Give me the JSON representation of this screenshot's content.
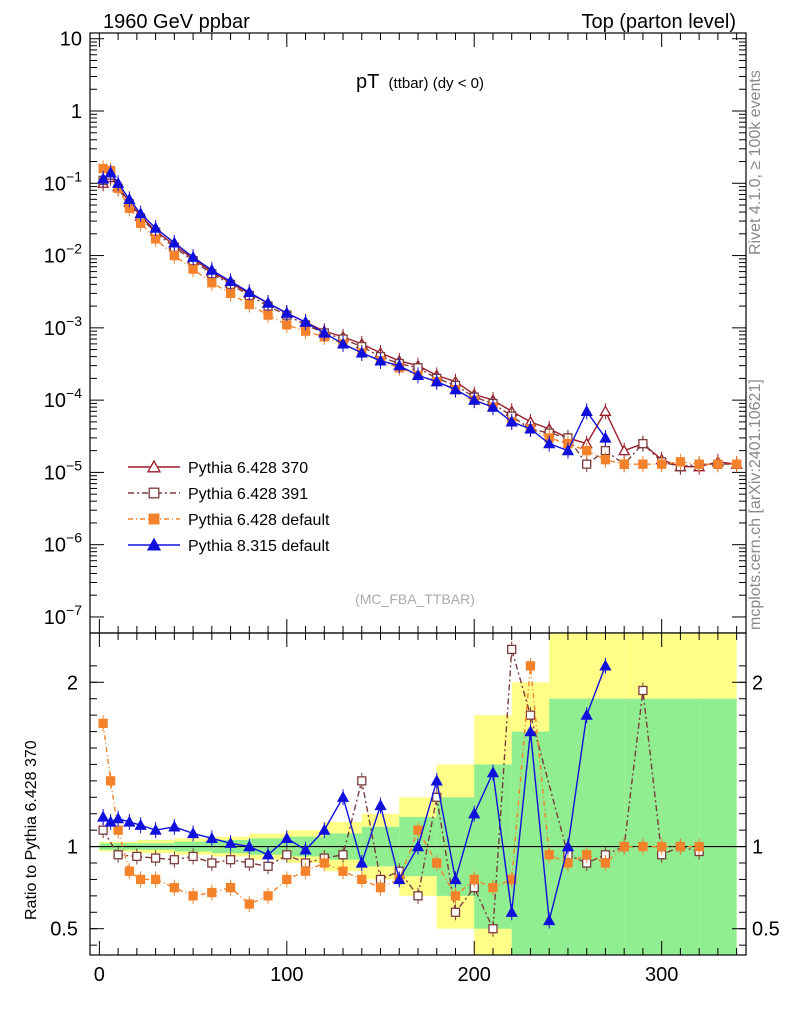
{
  "header": {
    "left": "1960 GeV ppbar",
    "right": "Top (parton level)"
  },
  "title": {
    "main": "pT",
    "sub": "(ttbar)  (dy < 0)"
  },
  "side_labels": {
    "rivet": "Rivet 4.1.0, ≥ 100k events",
    "mcplots": "mcplots.cern.ch [arXiv:2401.10621]"
  },
  "analysis_tag": "(MC_FBA_TTBAR)",
  "ratio_ylabel": "Ratio to Pythia 6.428 370",
  "colors": {
    "p6_370": "#9b1b2a",
    "p6_391": "#7b3b3b",
    "p6_default": "#f4822a",
    "p8_default": "#1010dd",
    "band_green": "#90ee90",
    "band_yellow": "#ffff88"
  },
  "chart_data": [
    {
      "type": "line",
      "panel": "main",
      "yscale": "log",
      "xlim": [
        -5,
        345
      ],
      "ylim": [
        6e-08,
        12
      ],
      "x_ticks": [
        0,
        100,
        200,
        300
      ],
      "y_ticks": [
        {
          "value": 1e-07,
          "label_base": "10",
          "label_exp": "−7"
        },
        {
          "value": 1e-06,
          "label_base": "10",
          "label_exp": "−6"
        },
        {
          "value": 1e-05,
          "label_base": "10",
          "label_exp": "−5"
        },
        {
          "value": 0.0001,
          "label_base": "10",
          "label_exp": "−4"
        },
        {
          "value": 0.001,
          "label_base": "10",
          "label_exp": "−3"
        },
        {
          "value": 0.01,
          "label_base": "10",
          "label_exp": "−2"
        },
        {
          "value": 0.1,
          "label_base": "10",
          "label_exp": "−1"
        },
        {
          "value": 1,
          "label_base": "1",
          "label_exp": ""
        },
        {
          "value": 10,
          "label_base": "10",
          "label_exp": ""
        }
      ],
      "series": [
        {
          "name": "Pythia 6.428 370",
          "key": "p6_370",
          "marker": "triangle-open",
          "dash": "",
          "x": [
            2,
            6,
            10,
            16,
            22,
            30,
            40,
            50,
            60,
            70,
            80,
            90,
            100,
            110,
            120,
            130,
            140,
            150,
            160,
            170,
            180,
            190,
            200,
            210,
            220,
            230,
            240,
            250,
            260,
            270,
            280,
            290,
            300,
            310,
            320,
            330,
            340
          ],
          "y": [
            0.1,
            0.12,
            0.09,
            0.055,
            0.035,
            0.022,
            0.014,
            0.009,
            0.006,
            0.0042,
            0.003,
            0.0022,
            0.0016,
            0.0012,
            0.0009,
            0.00075,
            0.0006,
            0.00045,
            0.00035,
            0.0003,
            0.00022,
            0.00018,
            0.00012,
            0.0001,
            7e-05,
            5e-05,
            4e-05,
            3e-05,
            2.5e-05,
            7e-05,
            2e-05,
            2.5e-05,
            1.5e-05,
            1.2e-05,
            1.2e-05,
            1.4e-05,
            1.3e-05
          ]
        },
        {
          "name": "Pythia 6.428 391",
          "key": "p6_391",
          "marker": "square-open",
          "dash": "6,3,2,3",
          "x": [
            2,
            6,
            10,
            16,
            22,
            30,
            40,
            50,
            60,
            70,
            80,
            90,
            100,
            110,
            120,
            130,
            140,
            150,
            160,
            170,
            180,
            190,
            200,
            210,
            220,
            230,
            240,
            250,
            260,
            270,
            280,
            290,
            300,
            310,
            320,
            330,
            340
          ],
          "y": [
            0.11,
            0.13,
            0.085,
            0.052,
            0.033,
            0.021,
            0.013,
            0.0085,
            0.0056,
            0.004,
            0.0028,
            0.002,
            0.0015,
            0.0011,
            0.00085,
            0.0007,
            0.00055,
            0.0004,
            0.00032,
            0.00028,
            0.0002,
            0.00016,
            0.00011,
            9e-05,
            6e-05,
            4e-05,
            3.5e-05,
            3e-05,
            1.3e-05,
            2e-05,
            1.3e-05,
            2.5e-05,
            1.4e-05,
            1.2e-05,
            1.3e-05,
            1.3e-05,
            1.3e-05
          ]
        },
        {
          "name": "Pythia 6.428 default",
          "key": "p6_default",
          "marker": "square-filled",
          "dash": "5,3,1,3",
          "x": [
            2,
            6,
            10,
            16,
            22,
            30,
            40,
            50,
            60,
            70,
            80,
            90,
            100,
            110,
            120,
            130,
            140,
            150,
            160,
            170,
            180,
            190,
            200,
            210,
            220,
            230,
            240,
            250,
            260,
            270,
            280,
            290,
            300,
            310,
            320,
            330,
            340
          ],
          "y": [
            0.16,
            0.15,
            0.085,
            0.045,
            0.028,
            0.017,
            0.01,
            0.0065,
            0.0042,
            0.003,
            0.0021,
            0.0015,
            0.0011,
            0.0009,
            0.00075,
            0.0006,
            0.00045,
            0.00035,
            0.00028,
            0.00022,
            0.00018,
            0.00014,
            0.0001,
            8e-05,
            5e-05,
            4e-05,
            3e-05,
            2.5e-05,
            2e-05,
            1.5e-05,
            1.3e-05,
            1.3e-05,
            1.3e-05,
            1.4e-05,
            1.3e-05,
            1.3e-05,
            1.3e-05
          ]
        },
        {
          "name": "Pythia 8.315 default",
          "key": "p8_default",
          "marker": "triangle-filled",
          "dash": "",
          "x": [
            2,
            6,
            10,
            16,
            22,
            30,
            40,
            50,
            60,
            70,
            80,
            90,
            100,
            110,
            120,
            130,
            140,
            150,
            160,
            170,
            180,
            190,
            200,
            210,
            220,
            230,
            240,
            250,
            260,
            270
          ],
          "y": [
            0.115,
            0.14,
            0.1,
            0.06,
            0.038,
            0.024,
            0.015,
            0.0095,
            0.0063,
            0.0044,
            0.0031,
            0.0022,
            0.0016,
            0.0012,
            0.00085,
            0.0006,
            0.00045,
            0.00035,
            0.0003,
            0.00022,
            0.00018,
            0.00014,
            0.0001,
            8e-05,
            5e-05,
            4e-05,
            2.5e-05,
            2e-05,
            7e-05,
            3e-05
          ]
        }
      ]
    },
    {
      "type": "line",
      "panel": "ratio",
      "yscale": "linear",
      "xlim": [
        -5,
        345
      ],
      "ylim": [
        0.34,
        2.3
      ],
      "x_ticks": [
        0,
        100,
        200,
        300
      ],
      "y_ticks": [
        0.5,
        1,
        2
      ],
      "y_tick_labels": [
        "0.5",
        "1",
        "2"
      ],
      "ylabel": "Ratio to Pythia 6.428 370",
      "series": [
        {
          "name": "Pythia 6.428 391",
          "key": "p6_391",
          "marker": "square-open",
          "dash": "6,3,2,3",
          "x": [
            2,
            10,
            20,
            30,
            40,
            50,
            60,
            70,
            80,
            90,
            100,
            110,
            120,
            130,
            140,
            150,
            160,
            170,
            180,
            190,
            200,
            210,
            220,
            230,
            250,
            260,
            270,
            280,
            290,
            300,
            310,
            320
          ],
          "y": [
            1.1,
            0.95,
            0.94,
            0.93,
            0.92,
            0.94,
            0.9,
            0.92,
            0.9,
            0.88,
            0.95,
            0.9,
            0.93,
            0.95,
            1.4,
            0.8,
            0.85,
            0.7,
            1.3,
            0.6,
            0.75,
            0.5,
            2.2,
            1.8,
            0.95,
            0.9,
            0.95,
            1.0,
            1.95,
            0.95,
            1.0,
            0.97
          ]
        },
        {
          "name": "Pythia 6.428 default",
          "key": "p6_default",
          "marker": "square-filled",
          "dash": "5,3,1,3",
          "x": [
            2,
            6,
            10,
            16,
            22,
            30,
            40,
            50,
            60,
            70,
            80,
            90,
            100,
            110,
            120,
            130,
            140,
            150,
            160,
            170,
            180,
            190,
            200,
            210,
            220,
            230,
            240,
            250,
            260,
            270,
            280,
            290,
            300,
            310,
            320
          ],
          "y": [
            1.75,
            1.4,
            1.1,
            0.85,
            0.8,
            0.8,
            0.75,
            0.7,
            0.72,
            0.75,
            0.65,
            0.7,
            0.8,
            0.85,
            0.9,
            0.85,
            0.8,
            0.75,
            0.8,
            1.1,
            0.9,
            0.7,
            0.8,
            0.75,
            0.8,
            2.1,
            0.95,
            0.9,
            0.95,
            0.9,
            1.0,
            1.0,
            1.0,
            1.0,
            1.0
          ]
        },
        {
          "name": "Pythia 8.315 default",
          "key": "p8_default",
          "marker": "triangle-filled",
          "dash": "",
          "x": [
            2,
            6,
            10,
            16,
            22,
            30,
            40,
            50,
            60,
            70,
            80,
            90,
            100,
            110,
            120,
            130,
            140,
            150,
            160,
            170,
            180,
            190,
            200,
            210,
            220,
            230,
            240,
            250,
            260,
            270
          ],
          "y": [
            1.18,
            1.15,
            1.17,
            1.15,
            1.13,
            1.1,
            1.12,
            1.08,
            1.05,
            1.02,
            1.0,
            0.95,
            1.05,
            0.98,
            1.1,
            1.3,
            0.9,
            1.25,
            0.8,
            1.0,
            1.4,
            0.8,
            1.2,
            1.45,
            0.6,
            1.7,
            0.55,
            1.0,
            1.8,
            2.1
          ]
        }
      ],
      "bands": [
        {
          "color": "band_yellow",
          "x": [
            0,
            20,
            40,
            60,
            80,
            100,
            120,
            140,
            160,
            180,
            200,
            220,
            240,
            260,
            280,
            300,
            320,
            340
          ],
          "half_width": [
            0.03,
            0.04,
            0.05,
            0.06,
            0.08,
            0.1,
            0.15,
            0.2,
            0.3,
            0.5,
            0.8,
            1.0,
            1.3,
            1.3,
            1.3,
            1.3,
            1.3,
            1.3
          ]
        },
        {
          "color": "band_green",
          "x": [
            0,
            20,
            40,
            60,
            80,
            100,
            120,
            140,
            160,
            180,
            200,
            220,
            240,
            260,
            280,
            300,
            320,
            340
          ],
          "half_width": [
            0.02,
            0.02,
            0.03,
            0.04,
            0.05,
            0.06,
            0.08,
            0.12,
            0.18,
            0.3,
            0.5,
            0.7,
            0.9,
            0.9,
            0.9,
            0.9,
            0.9,
            0.9
          ]
        }
      ]
    }
  ]
}
